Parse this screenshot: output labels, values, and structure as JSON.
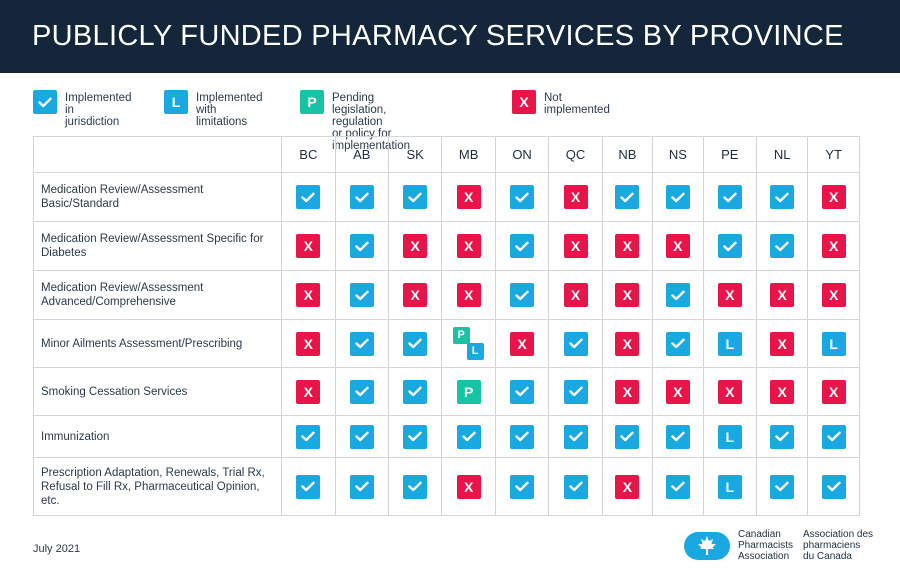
{
  "title": "PUBLICLY FUNDED PHARMACY SERVICES BY PROVINCE",
  "legend": [
    {
      "type": "yes",
      "symbol": "",
      "line1": "Implemented in",
      "line2": "jurisdiction"
    },
    {
      "type": "lim",
      "symbol": "L",
      "line1": "Implemented",
      "line2": "with limitations"
    },
    {
      "type": "pend",
      "symbol": "P",
      "line1": "Pending legislation, regulation",
      "line2": "or policy for implementation"
    },
    {
      "type": "no",
      "symbol": "X",
      "line1": "Not",
      "line2": "implemented"
    }
  ],
  "provinces": [
    "BC",
    "AB",
    "SK",
    "MB",
    "ON",
    "QC",
    "NB",
    "NS",
    "PE",
    "NL",
    "YT"
  ],
  "services": [
    {
      "name": "Medication Review/Assessment Basic/Standard",
      "status": [
        "yes",
        "yes",
        "yes",
        "no",
        "yes",
        "no",
        "yes",
        "yes",
        "yes",
        "yes",
        "no"
      ]
    },
    {
      "name": "Medication Review/Assessment Specific for Diabetes",
      "status": [
        "no",
        "yes",
        "no",
        "no",
        "yes",
        "no",
        "no",
        "no",
        "yes",
        "yes",
        "no"
      ]
    },
    {
      "name": "Medication Review/Assessment Advanced/Comprehensive",
      "status": [
        "no",
        "yes",
        "no",
        "no",
        "yes",
        "no",
        "no",
        "yes",
        "no",
        "no",
        "no"
      ]
    },
    {
      "name": "Minor Ailments Assessment/Prescribing",
      "status": [
        "no",
        "yes",
        "yes",
        "pend+lim",
        "no",
        "yes",
        "no",
        "yes",
        "lim",
        "no",
        "lim"
      ]
    },
    {
      "name": "Smoking Cessation Services",
      "status": [
        "no",
        "yes",
        "yes",
        "pend",
        "yes",
        "yes",
        "no",
        "no",
        "no",
        "no",
        "no"
      ]
    },
    {
      "name": "Immunization",
      "status": [
        "yes",
        "yes",
        "yes",
        "yes",
        "yes",
        "yes",
        "yes",
        "yes",
        "lim",
        "yes",
        "yes"
      ]
    },
    {
      "name": "Prescription Adaptation, Renewals, Trial Rx, Refusal to Fill Rx, Pharmaceutical Opinion, etc.",
      "status": [
        "yes",
        "yes",
        "yes",
        "no",
        "yes",
        "yes",
        "no",
        "yes",
        "lim",
        "yes",
        "yes"
      ]
    }
  ],
  "symbols": {
    "lim": "L",
    "pend": "P",
    "no": "X"
  },
  "date": "July 2021",
  "org": {
    "en": [
      "Canadian",
      "Pharmacists",
      "Association"
    ],
    "fr": [
      "Association des",
      "pharmaciens",
      "du Canada"
    ]
  },
  "colors": {
    "header_bg": "#14263a",
    "implemented": "#1aa8e0",
    "limitations": "#1aa8e0",
    "pending": "#17c2a5",
    "not_implemented": "#e8144a",
    "logo": "#1aa8e0"
  }
}
